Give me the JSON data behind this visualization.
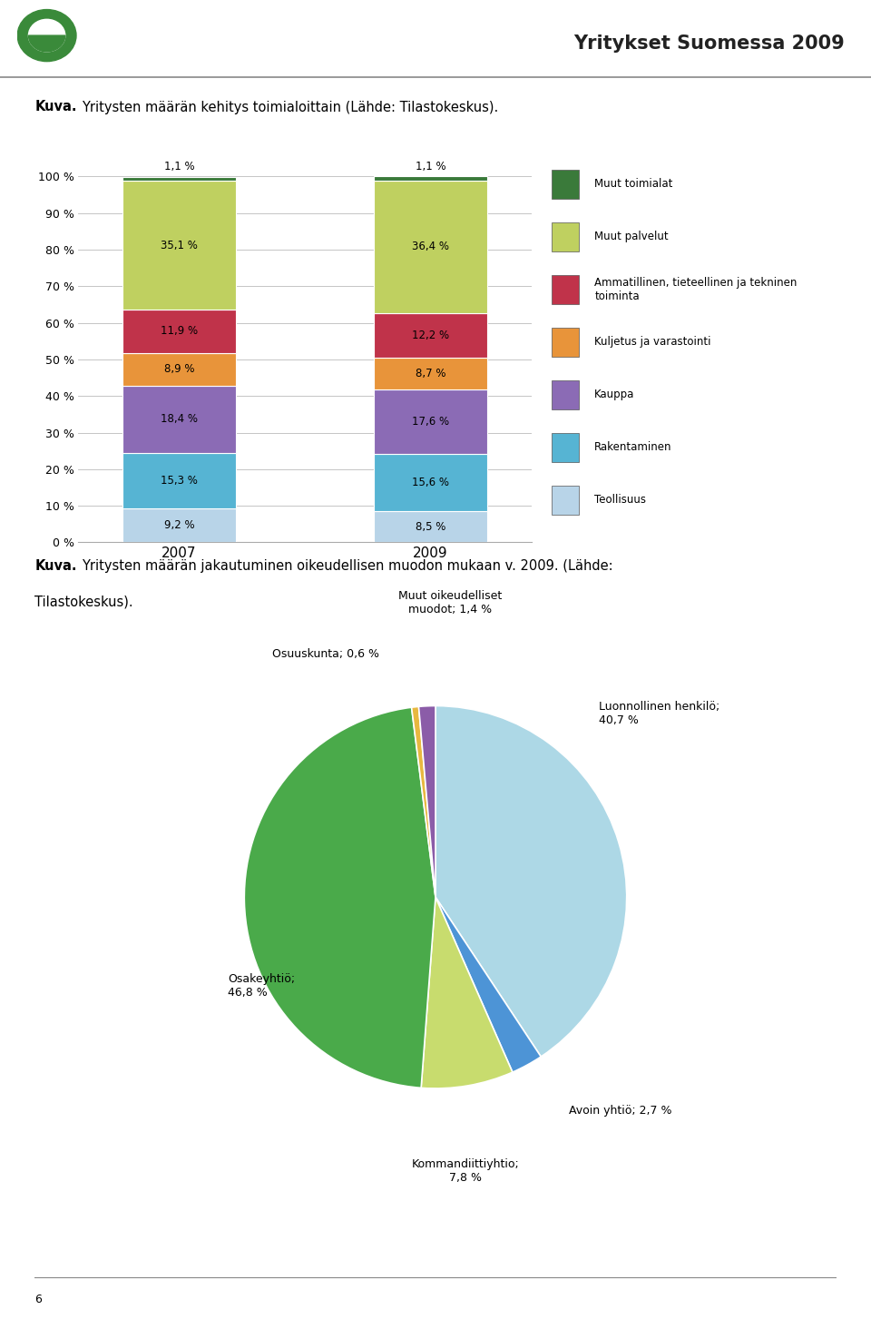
{
  "header_title": "Yritykset Suomessa 2009",
  "bar_years": [
    "2007",
    "2009"
  ],
  "bar_categories": [
    "Teollisuus",
    "Rakentaminen",
    "Kauppa",
    "Kuljetus ja varastointi",
    "Ammatillinen, tieteellinen ja tekninen toiminta",
    "Muut palvelut",
    "Muut toimialat"
  ],
  "bar_colors": [
    "#b8d4e8",
    "#56b4d3",
    "#8b6bb5",
    "#e8943a",
    "#c0334a",
    "#bfd060",
    "#3a7a3a"
  ],
  "bar_data_2007": [
    9.2,
    15.3,
    18.4,
    8.9,
    11.9,
    35.1,
    1.1
  ],
  "bar_data_2009": [
    8.5,
    15.6,
    17.6,
    8.7,
    12.2,
    36.4,
    1.1
  ],
  "bar_labels_2007": [
    "9,2 %",
    "15,3 %",
    "18,4 %",
    "8,9 %",
    "11,9 %",
    "35,1 %",
    "1,1 %"
  ],
  "bar_labels_2009": [
    "8,5 %",
    "15,6 %",
    "17,6 %",
    "8,7 %",
    "12,2 %",
    "36,4 %",
    "1,1 %"
  ],
  "bar_yticks": [
    0,
    10,
    20,
    30,
    40,
    50,
    60,
    70,
    80,
    90,
    100
  ],
  "bar_ytick_labels": [
    "0 %",
    "10 %",
    "20 %",
    "30 %",
    "40 %",
    "50 %",
    "60 %",
    "70 %",
    "80 %",
    "90 %",
    "100 %"
  ],
  "legend_labels": [
    "Muut toimialat",
    "Muut palvelut",
    "Ammatillinen, tieteellinen ja tekninen\ntoiminta",
    "Kuljetus ja varastointi",
    "Kauppa",
    "Rakentaminen",
    "Teollisuus"
  ],
  "pie_values": [
    40.7,
    2.7,
    7.8,
    46.8,
    0.6,
    1.4
  ],
  "pie_colors": [
    "#add8e6",
    "#4d94d6",
    "#c8dc6e",
    "#4aaa4a",
    "#e8b840",
    "#8b5ca8"
  ],
  "footer_text": "6",
  "bg_color": "#ffffff"
}
